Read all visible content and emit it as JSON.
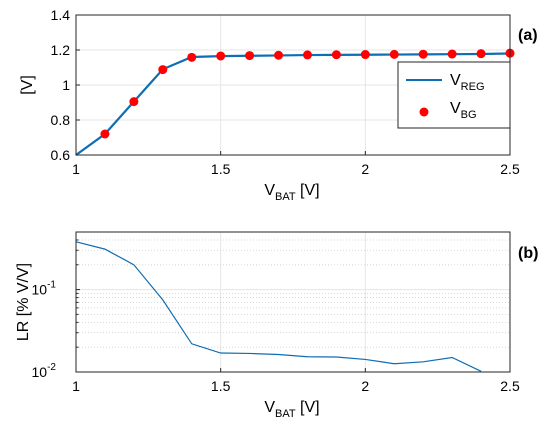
{
  "chart_data": [
    {
      "type": "line",
      "panel": "(a)",
      "xlabel": "V",
      "xlabel_sub": "BAT",
      "xlabel_unit": " [V]",
      "ylabel": "[V]",
      "xlim": [
        1,
        2.5
      ],
      "ylim": [
        0.6,
        1.4
      ],
      "xticks": [
        "1",
        "1.5",
        "2",
        "2.5"
      ],
      "yticks": [
        "0.6",
        "0.8",
        "1",
        "1.2",
        "1.4"
      ],
      "grid": true,
      "legend_position": "right",
      "series": [
        {
          "name": "V",
          "name_sub": "REG",
          "style": "line",
          "color": "#0f6db3",
          "x": [
            1.0,
            1.1,
            1.2,
            1.3,
            1.4,
            1.5,
            1.6,
            1.7,
            1.8,
            1.9,
            2.0,
            2.1,
            2.2,
            2.3,
            2.4,
            2.5
          ],
          "y": [
            0.6,
            0.72,
            0.905,
            1.09,
            1.16,
            1.165,
            1.167,
            1.169,
            1.171,
            1.172,
            1.173,
            1.174,
            1.175,
            1.176,
            1.177,
            1.18
          ]
        },
        {
          "name": "V",
          "name_sub": "BG",
          "style": "marker",
          "color": "#ff0000",
          "x": [
            1.1,
            1.2,
            1.3,
            1.4,
            1.5,
            1.6,
            1.7,
            1.8,
            1.9,
            2.0,
            2.1,
            2.2,
            2.3,
            2.4,
            2.5
          ],
          "y": [
            0.72,
            0.905,
            1.088,
            1.158,
            1.166,
            1.168,
            1.17,
            1.172,
            1.173,
            1.174,
            1.175,
            1.176,
            1.177,
            1.179,
            1.182
          ]
        }
      ]
    },
    {
      "type": "line",
      "panel": "(b)",
      "xlabel": "V",
      "xlabel_sub": "BAT",
      "xlabel_unit": " [V]",
      "ylabel": "LR [% V/V]",
      "xlim": [
        1,
        2.5
      ],
      "ylim": [
        0.01,
        0.5
      ],
      "yscale": "log",
      "xticks": [
        "1",
        "1.5",
        "2",
        "2.5"
      ],
      "yticks": [
        {
          "base": "10",
          "exp": "-2",
          "value": 0.01
        },
        {
          "base": "10",
          "exp": "-1",
          "value": 0.1
        }
      ],
      "grid": true,
      "series": [
        {
          "color": "#0f6db3",
          "x": [
            1.0,
            1.1,
            1.2,
            1.3,
            1.4,
            1.5,
            1.6,
            1.7,
            1.8,
            1.9,
            2.0,
            2.1,
            2.2,
            2.3,
            2.4
          ],
          "y": [
            0.38,
            0.31,
            0.2,
            0.075,
            0.022,
            0.017,
            0.0168,
            0.0163,
            0.0153,
            0.0152,
            0.0142,
            0.0126,
            0.0133,
            0.015,
            0.0102
          ]
        }
      ]
    }
  ]
}
